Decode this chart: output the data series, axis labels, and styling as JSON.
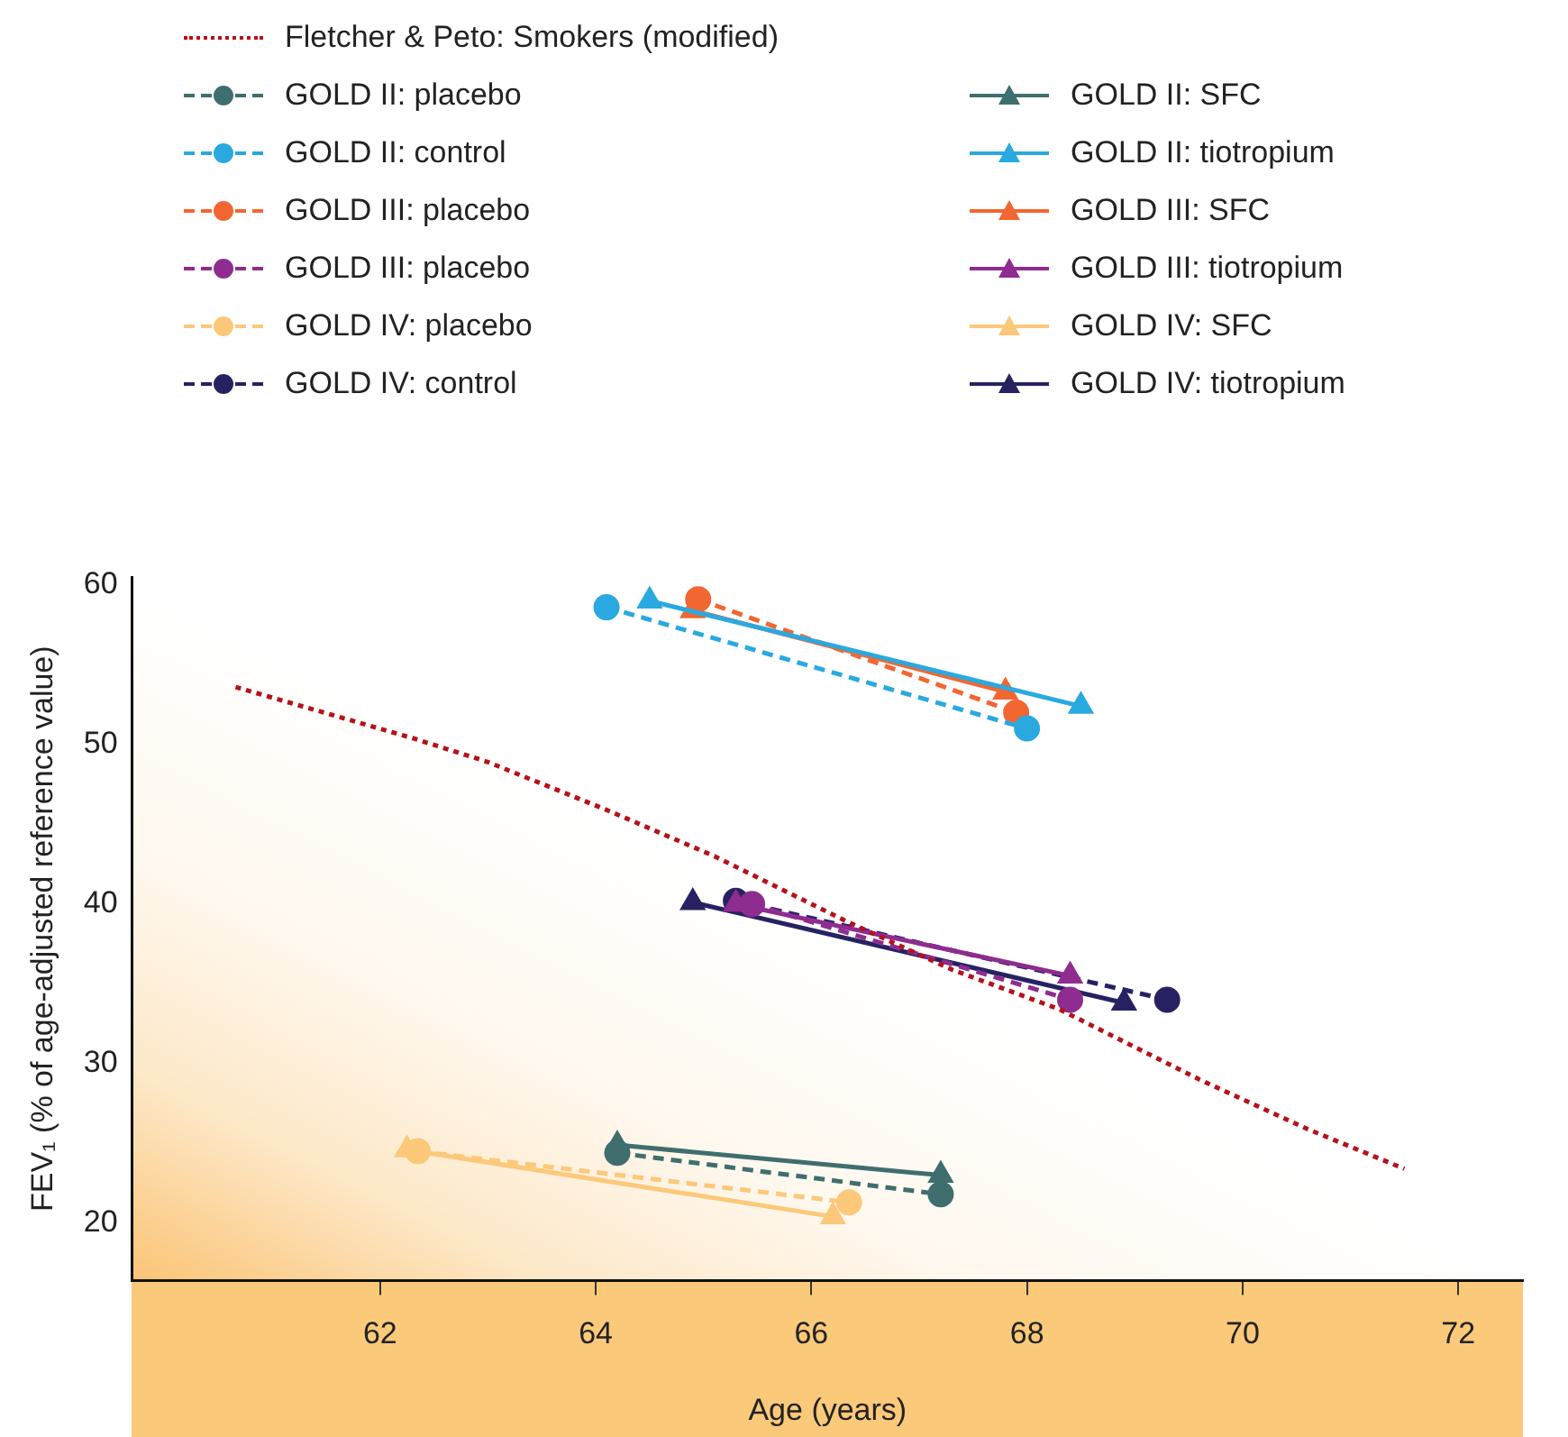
{
  "chart_data": {
    "type": "line",
    "xlabel": "Age (years)",
    "ylabel": "FEV₁ (% of age-adjusted reference value)",
    "xlim": [
      59.7,
      72.6
    ],
    "ylim": [
      16.4,
      60.5
    ],
    "xticks": [
      62,
      64,
      66,
      68,
      70,
      72
    ],
    "yticks": [
      20,
      30,
      40,
      50,
      60
    ],
    "grid": false,
    "legend": "top left",
    "series": [
      {
        "name": "Fletcher & Peto: Smokers (modified)",
        "color": "#b5121b",
        "line_style": "dotted",
        "marker": "none",
        "x": [
          60.66,
          62.3,
          63,
          64.1,
          65.1,
          66.3,
          67.3,
          68.3,
          69.6,
          70.6,
          71.5
        ],
        "values": [
          53.6,
          50.4,
          48.9,
          45.9,
          43,
          39,
          35.9,
          33.4,
          29,
          25.9,
          23.4
        ]
      },
      {
        "name": "GOLD II: placebo",
        "color": "#3f6e6e",
        "line_style": "dashed",
        "marker": "circle",
        "x": [
          64.2,
          67.2
        ],
        "values": [
          24.4,
          21.8
        ]
      },
      {
        "name": "GOLD II: SFC",
        "color": "#3f6e6e",
        "line_style": "solid",
        "marker": "triangle",
        "x": [
          64.2,
          67.2
        ],
        "values": [
          24.9,
          23
        ]
      },
      {
        "name": "GOLD II: control",
        "color": "#29a9e0",
        "line_style": "dashed",
        "marker": "circle",
        "x": [
          64.1,
          68
        ],
        "values": [
          58.6,
          51
        ]
      },
      {
        "name": "GOLD II: tiotropium",
        "color": "#29a9e0",
        "line_style": "solid",
        "marker": "triangle",
        "x": [
          64.5,
          68.5
        ],
        "values": [
          59,
          52.4
        ]
      },
      {
        "name": "GOLD III: placebo",
        "color": "#f26631",
        "line_style": "dashed",
        "marker": "circle",
        "x": [
          64.95,
          67.9
        ],
        "values": [
          59.1,
          52
        ]
      },
      {
        "name": "GOLD III: SFC",
        "color": "#f26631",
        "line_style": "solid",
        "marker": "triangle",
        "x": [
          64.9,
          67.8
        ],
        "values": [
          58.4,
          53.3
        ]
      },
      {
        "name": "GOLD III: placebo",
        "color": "#8e2c90",
        "line_style": "dashed",
        "marker": "circle",
        "x": [
          65.45,
          68.4
        ],
        "values": [
          40,
          34
        ]
      },
      {
        "name": "GOLD III: tiotropium",
        "color": "#8e2c90",
        "line_style": "solid",
        "marker": "triangle",
        "x": [
          65.3,
          68.4
        ],
        "values": [
          40,
          35.5
        ]
      },
      {
        "name": "GOLD IV: placebo",
        "color": "#fcc87a",
        "line_style": "dashed",
        "marker": "circle",
        "x": [
          62.35,
          66.35
        ],
        "values": [
          24.5,
          21.3
        ]
      },
      {
        "name": "GOLD IV: SFC",
        "color": "#fcc87a",
        "line_style": "solid",
        "marker": "triangle",
        "x": [
          62.25,
          66.2
        ],
        "values": [
          24.6,
          20.4
        ]
      },
      {
        "name": "GOLD IV: control",
        "color": "#262262",
        "line_style": "dashed",
        "marker": "circle",
        "x": [
          65.3,
          69.3
        ],
        "values": [
          40.2,
          34
        ]
      },
      {
        "name": "GOLD IV: tiotropium",
        "color": "#262262",
        "line_style": "solid",
        "marker": "triangle",
        "x": [
          64.9,
          68.9
        ],
        "values": [
          40.1,
          33.8
        ]
      }
    ]
  }
}
